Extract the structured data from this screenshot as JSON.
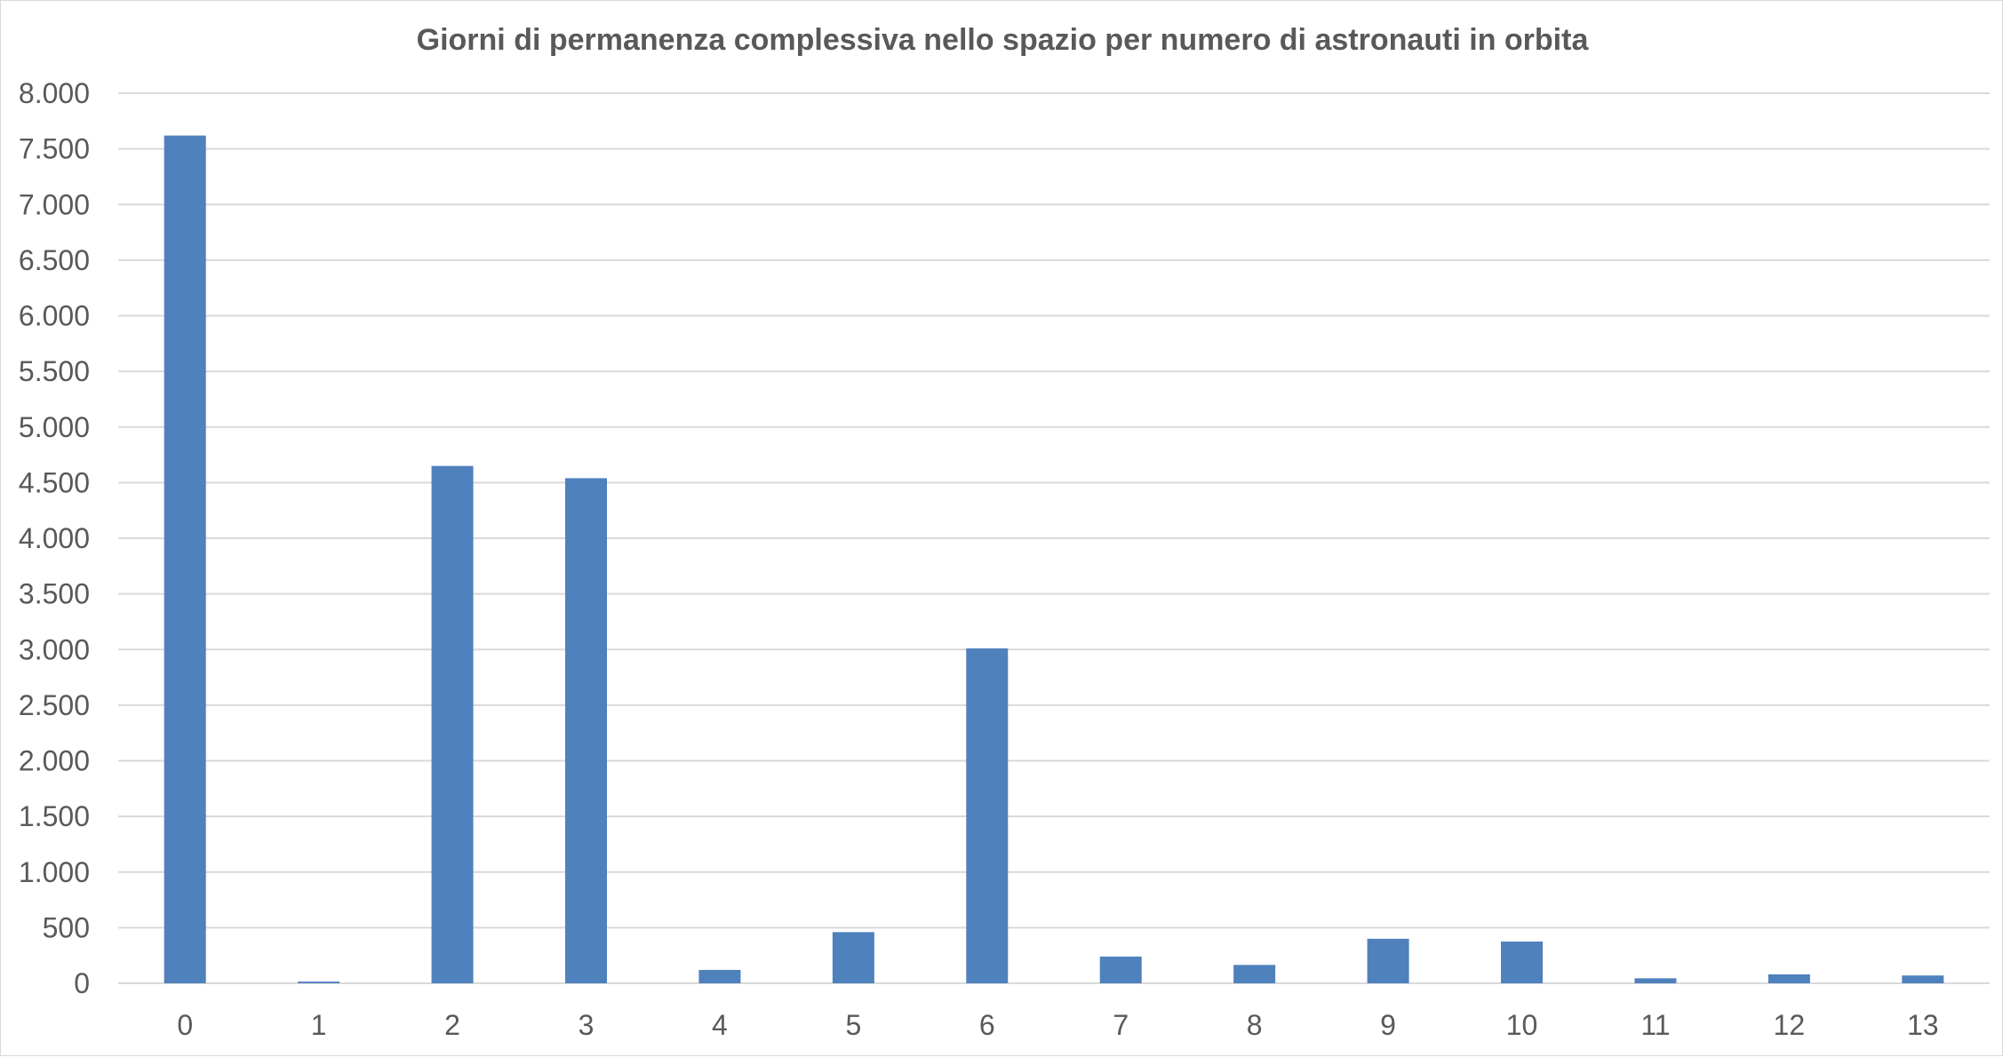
{
  "chart_data": {
    "type": "bar",
    "title": "Giorni di permanenza complessiva nello spazio per numero di astronauti in orbita",
    "xlabel": "",
    "ylabel": "",
    "categories": [
      "0",
      "1",
      "2",
      "3",
      "4",
      "5",
      "6",
      "7",
      "8",
      "9",
      "10",
      "11",
      "12",
      "13"
    ],
    "values": [
      7620,
      15,
      4650,
      4540,
      120,
      460,
      3010,
      240,
      165,
      400,
      375,
      45,
      80,
      70
    ],
    "ylim": [
      0,
      8000
    ],
    "yticks": [
      0,
      500,
      1000,
      1500,
      2000,
      2500,
      3000,
      3500,
      4000,
      4500,
      5000,
      5500,
      6000,
      6500,
      7000,
      7500,
      8000
    ],
    "ytick_labels": [
      "0",
      "500",
      "1.000",
      "1.500",
      "2.000",
      "2.500",
      "3.000",
      "3.500",
      "4.000",
      "4.500",
      "5.000",
      "5.500",
      "6.000",
      "6.500",
      "7.000",
      "7.500",
      "8.000"
    ],
    "grid": true,
    "legend": "none",
    "bar_color": "#4f81bd"
  }
}
